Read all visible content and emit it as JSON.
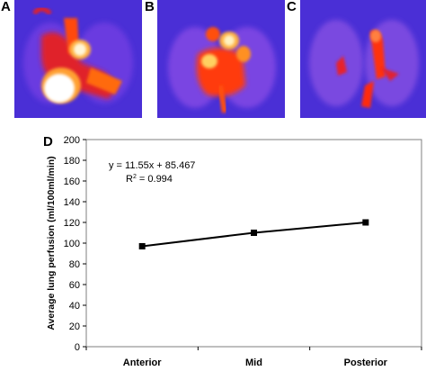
{
  "panels": [
    {
      "label": "A"
    },
    {
      "label": "B"
    },
    {
      "label": "C"
    }
  ],
  "colors": {
    "mri_background": "#4a2fd6",
    "mri_glow": "#ff3a00",
    "mri_hot": "#ffffff",
    "line": "#000000"
  },
  "chart_data": {
    "type": "line",
    "panel_label": "D",
    "categories": [
      "Anterior",
      "Mid",
      "Posterior"
    ],
    "values": [
      97,
      110,
      120
    ],
    "xlabel": "",
    "ylabel": "Average lung perfusion (ml/100ml/min)",
    "ylim": [
      0,
      200
    ],
    "yticks": [
      0,
      20,
      40,
      60,
      80,
      100,
      120,
      140,
      160,
      180,
      200
    ],
    "grid": false,
    "legend": "none",
    "annotation": {
      "equation": "y = 11.55x + 85.467",
      "r2_prefix": "R",
      "r2_exp": "2",
      "r2_value": " = 0.994"
    }
  }
}
